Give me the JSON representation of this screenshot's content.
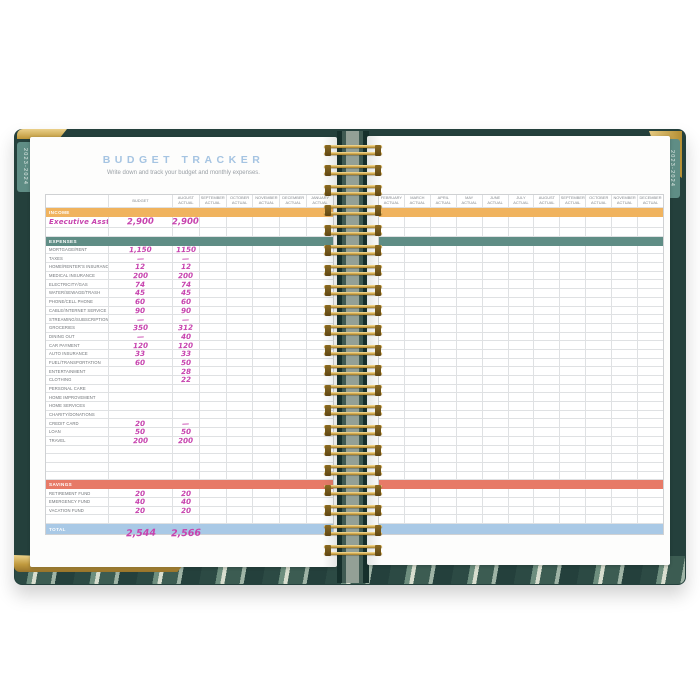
{
  "planner": {
    "spine_tab_label": "2023-2024",
    "page_title": "BUDGET TRACKER",
    "page_subtitle": "Write down and track your budget and monthly expenses.",
    "colors": {
      "cover_teal": "#24403c",
      "tab_teal": "#5f8d85",
      "gold": "#c9a24a",
      "income_band": "#f0b35e",
      "expenses_band": "#5f8d85",
      "savings_band": "#e77a67",
      "total_band": "#a9c9e6",
      "handwriting": "#c743ae",
      "title_blue": "#a5c4e2",
      "grid_line": "#dfe1e3"
    },
    "left_page": {
      "columns": [
        "BUDGET",
        "AUGUST ACTUAL",
        "SEPTEMBER ACTUAL",
        "OCTOBER ACTUAL",
        "NOVEMBER ACTUAL",
        "DECEMBER ACTUAL",
        "JANUARY ACTUAL"
      ]
    },
    "right_page": {
      "columns": [
        "FEBRUARY ACTUAL",
        "MARCH ACTUAL",
        "APRIL ACTUAL",
        "MAY ACTUAL",
        "JUNE ACTUAL",
        "JULY ACTUAL",
        "AUGUST ACTUAL",
        "SEPTEMBER ACTUAL",
        "OCTOBER ACTUAL",
        "NOVEMBER ACTUAL",
        "DECEMBER ACTUAL"
      ]
    },
    "rows": [
      {
        "type": "header"
      },
      {
        "type": "band",
        "label": "INCOME",
        "band": "income_band"
      },
      {
        "type": "income",
        "label": "Executive Asst.",
        "budget": "2,900",
        "august": "2,900"
      },
      {
        "type": "empty",
        "label": "",
        "budget": "",
        "august": ""
      },
      {
        "type": "band",
        "label": "EXPENSES",
        "band": "expenses_band"
      },
      {
        "type": "entry",
        "label": "MORTGAGE/RENT",
        "budget": "1,150",
        "august": "1150"
      },
      {
        "type": "entry",
        "label": "TAXES",
        "budget": "—",
        "august": "—"
      },
      {
        "type": "entry",
        "label": "HOME/RENTER'S INSURANCE",
        "budget": "12",
        "august": "12"
      },
      {
        "type": "entry",
        "label": "MEDICAL INSURANCE",
        "budget": "200",
        "august": "200"
      },
      {
        "type": "entry",
        "label": "ELECTRICITY/GAS",
        "budget": "74",
        "august": "74"
      },
      {
        "type": "entry",
        "label": "WATER/SEWAGE/TRASH",
        "budget": "45",
        "august": "45"
      },
      {
        "type": "entry",
        "label": "PHONE/CELL PHONE",
        "budget": "60",
        "august": "60"
      },
      {
        "type": "entry",
        "label": "CABLE/INTERNET SERVICE",
        "budget": "90",
        "august": "90"
      },
      {
        "type": "entry",
        "label": "STREAMING/SUBSCRIPTION SERVICES",
        "budget": "—",
        "august": "—"
      },
      {
        "type": "entry",
        "label": "GROCERIES",
        "budget": "350",
        "august": "312"
      },
      {
        "type": "entry",
        "label": "DINING OUT",
        "budget": "—",
        "august": "40"
      },
      {
        "type": "entry",
        "label": "CAR PAYMENT",
        "budget": "120",
        "august": "120"
      },
      {
        "type": "entry",
        "label": "AUTO INSURANCE",
        "budget": "33",
        "august": "33"
      },
      {
        "type": "entry",
        "label": "FUEL/TRANSPORTATION",
        "budget": "60",
        "august": "50"
      },
      {
        "type": "entry",
        "label": "ENTERTAINMENT",
        "budget": "",
        "august": "28"
      },
      {
        "type": "entry",
        "label": "CLOTHING",
        "budget": "",
        "august": "22"
      },
      {
        "type": "entry",
        "label": "PERSONAL CARE",
        "budget": "",
        "august": ""
      },
      {
        "type": "entry",
        "label": "HOME IMPROVEMENT",
        "budget": "",
        "august": ""
      },
      {
        "type": "entry",
        "label": "HOME SERVICES",
        "budget": "",
        "august": ""
      },
      {
        "type": "entry",
        "label": "CHARITY/DONATIONS",
        "budget": "",
        "august": ""
      },
      {
        "type": "entry",
        "label": "CREDIT CARD",
        "budget": "20",
        "august": "—"
      },
      {
        "type": "entry",
        "label": "LOAN",
        "budget": "50",
        "august": "50"
      },
      {
        "type": "entry",
        "label": "TRAVEL",
        "budget": "200",
        "august": "200"
      },
      {
        "type": "empty",
        "label": "",
        "budget": "",
        "august": ""
      },
      {
        "type": "empty",
        "label": "",
        "budget": "",
        "august": ""
      },
      {
        "type": "empty",
        "label": "",
        "budget": "",
        "august": ""
      },
      {
        "type": "empty",
        "label": "",
        "budget": "",
        "august": ""
      },
      {
        "type": "band",
        "label": "SAVINGS",
        "band": "savings_band"
      },
      {
        "type": "entry",
        "label": "RETIREMENT FUND",
        "budget": "20",
        "august": "20"
      },
      {
        "type": "entry",
        "label": "EMERGENCY FUND",
        "budget": "40",
        "august": "40"
      },
      {
        "type": "entry",
        "label": "VACATION FUND",
        "budget": "20",
        "august": "20"
      },
      {
        "type": "empty",
        "label": "",
        "budget": "",
        "august": ""
      },
      {
        "type": "total",
        "label": "TOTAL",
        "band": "total_band",
        "budget": "2,544",
        "august": "2,566"
      }
    ]
  }
}
